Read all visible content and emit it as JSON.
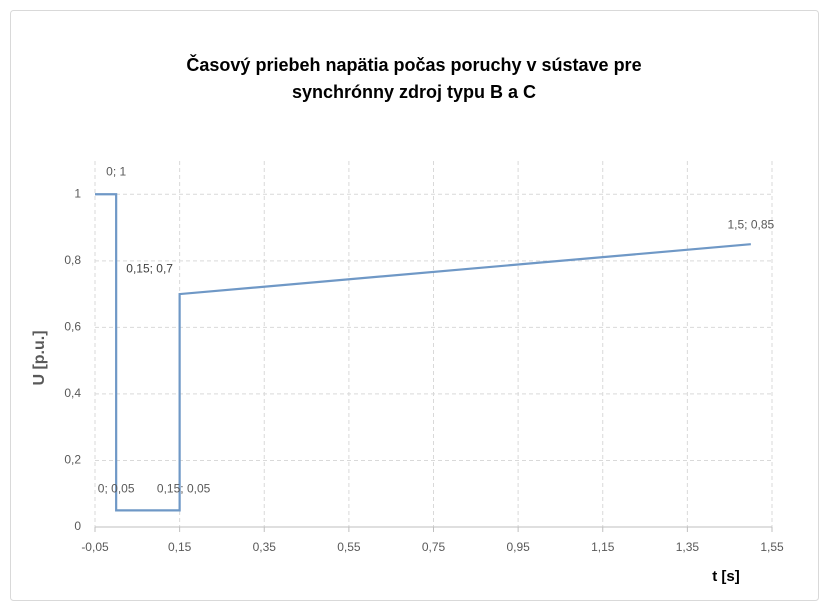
{
  "chart_data": {
    "type": "line",
    "title": "Časový priebeh napätia počas poruchy v sústave pre synchrónny zdroj typu B a C",
    "x_label": "t [s]",
    "y_label": "U [p.u.]",
    "x": [
      -0.05,
      0,
      0,
      0.15,
      0.15,
      1.5
    ],
    "series": [
      {
        "color": "#6f98c6",
        "values": [
          1,
          1,
          0.05,
          0.05,
          0.7,
          0.85
        ],
        "value_labels": [
          null,
          "0; 1",
          "0; 0,05",
          "0,15; 0,05",
          "0,15; 0,7",
          "1,5; 0,85"
        ]
      }
    ],
    "xlim": [
      -0.05,
      1.55
    ],
    "xticks": [
      {
        "value": -0.05,
        "label": "-0,05"
      },
      {
        "value": 0.15,
        "label": "0,15"
      },
      {
        "value": 0.35,
        "label": "0,35"
      },
      {
        "value": 0.55,
        "label": "0,55"
      },
      {
        "value": 0.75,
        "label": "0,75"
      },
      {
        "value": 0.95,
        "label": "0,95"
      },
      {
        "value": 1.15,
        "label": "1,15"
      },
      {
        "value": 1.35,
        "label": "1,35"
      },
      {
        "value": 1.55,
        "label": "1,55"
      }
    ],
    "ylim": [
      0,
      1.1
    ],
    "yticks": [
      0,
      {
        "value": 0.2,
        "label": "0,2"
      },
      {
        "value": 0.4,
        "label": "0,4"
      },
      {
        "value": 0.6,
        "label": "0,6"
      },
      {
        "value": 0.8,
        "label": "0,8"
      },
      1
    ],
    "grid": true
  }
}
